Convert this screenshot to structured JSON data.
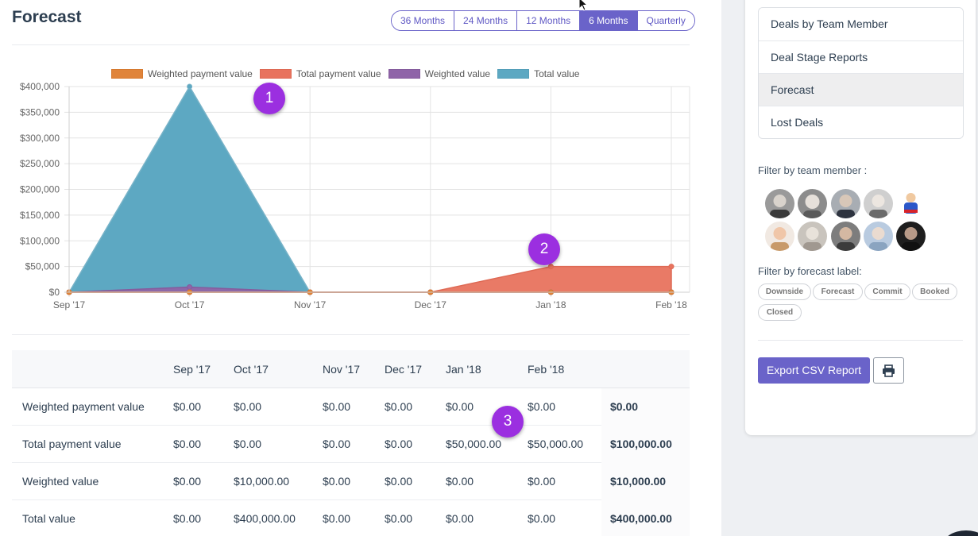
{
  "page": {
    "title": "Forecast"
  },
  "period_buttons": [
    {
      "label": "36 Months",
      "active": false
    },
    {
      "label": "24 Months",
      "active": false
    },
    {
      "label": "12 Months",
      "active": false
    },
    {
      "label": "6 Months",
      "active": true
    },
    {
      "label": "Quarterly",
      "active": false
    }
  ],
  "colors": {
    "accent": "#6a63c9",
    "weighted_payment": "#e0843a",
    "total_payment": "#e8735e",
    "weighted_value": "#8f64a8",
    "total_value": "#5da8c2",
    "badge": "#9b2fe0"
  },
  "chart_data": {
    "type": "area",
    "categories": [
      "Sep '17",
      "Oct '17",
      "Nov '17",
      "Dec '17",
      "Jan '18",
      "Feb '18"
    ],
    "series": [
      {
        "name": "Weighted payment value",
        "values": [
          0,
          0,
          0,
          0,
          0,
          0
        ]
      },
      {
        "name": "Total payment value",
        "values": [
          0,
          0,
          0,
          0,
          50000,
          50000
        ]
      },
      {
        "name": "Weighted value",
        "values": [
          0,
          10000,
          0,
          0,
          0,
          0
        ]
      },
      {
        "name": "Total value",
        "values": [
          0,
          400000,
          0,
          0,
          0,
          0
        ]
      }
    ],
    "y_ticks": [
      "$0",
      "$50,000",
      "$100,000",
      "$150,000",
      "$200,000",
      "$250,000",
      "$300,000",
      "$350,000",
      "$400,000"
    ],
    "ylim": [
      0,
      400000
    ],
    "grid": true,
    "legend_position": "top"
  },
  "table": {
    "headers": [
      "",
      "Sep '17",
      "Oct '17",
      "Nov '17",
      "Dec '17",
      "Jan '18",
      "Feb '18",
      ""
    ],
    "rows": [
      {
        "label": "Weighted payment value",
        "cells": [
          "$0.00",
          "$0.00",
          "$0.00",
          "$0.00",
          "$0.00",
          "$0.00"
        ],
        "total": "$0.00"
      },
      {
        "label": "Total payment value",
        "cells": [
          "$0.00",
          "$0.00",
          "$0.00",
          "$0.00",
          "$50,000.00",
          "$50,000.00"
        ],
        "total": "$100,000.00"
      },
      {
        "label": "Weighted value",
        "cells": [
          "$0.00",
          "$10,000.00",
          "$0.00",
          "$0.00",
          "$0.00",
          "$0.00"
        ],
        "total": "$10,000.00"
      },
      {
        "label": "Total value",
        "cells": [
          "$0.00",
          "$400,000.00",
          "$0.00",
          "$0.00",
          "$0.00",
          "$0.00"
        ],
        "total": "$400,000.00"
      }
    ]
  },
  "sidebar": {
    "menu": [
      {
        "label": "Deals by Team Member",
        "active": false
      },
      {
        "label": "Deal Stage Reports",
        "active": false
      },
      {
        "label": "Forecast",
        "active": true
      },
      {
        "label": "Lost Deals",
        "active": false
      }
    ],
    "team_filter_label": "Filter by team member :",
    "forecast_filter_label": "Filter by forecast label:",
    "forecast_labels": [
      "Downside",
      "Forecast",
      "Commit",
      "Booked",
      "Closed"
    ],
    "export_label": "Export CSV Report",
    "print_icon": "print-icon"
  },
  "badges": [
    "1",
    "2",
    "3"
  ]
}
